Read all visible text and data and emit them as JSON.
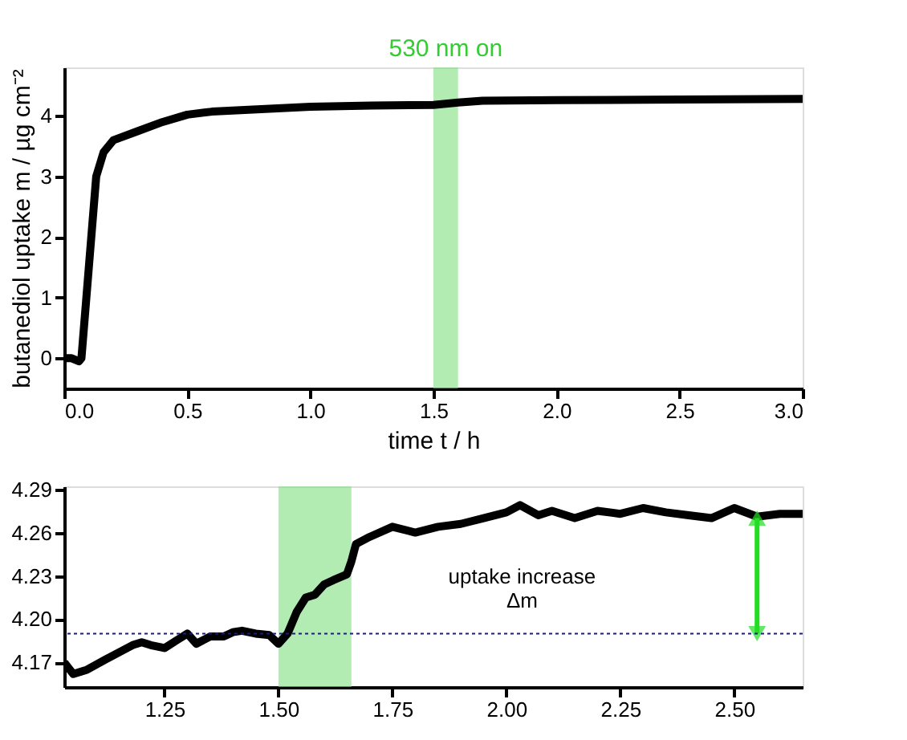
{
  "chart_data": [
    {
      "type": "line",
      "xlabel": "time t / h",
      "ylabel": "butanediol uptake m / µg cm⁻²",
      "xlim": [
        0,
        3
      ],
      "ylim": [
        -0.5,
        4.8
      ],
      "xticks": [
        {
          "value": 0,
          "label": "0.0"
        },
        {
          "value": 0.5,
          "label": "0.5"
        },
        {
          "value": 1,
          "label": "1.0"
        },
        {
          "value": 1.5,
          "label": "1.5"
        },
        {
          "value": 2,
          "label": "2.0"
        },
        {
          "value": 2.5,
          "label": "2.5"
        },
        {
          "value": 3,
          "label": "3.0"
        }
      ],
      "yticks": [
        0,
        1,
        2,
        3,
        4
      ],
      "grid": false,
      "bands": [
        {
          "axis": "x",
          "from": 1.5,
          "to": 1.6,
          "label": "530 nm on",
          "color": "#7ee07e"
        }
      ],
      "series": [
        {
          "color": "#000000",
          "x": [
            0,
            0.03,
            0.06,
            0.07,
            0.09,
            0.11,
            0.13,
            0.16,
            0.2,
            0.3,
            0.4,
            0.5,
            0.6,
            0.75,
            1.0,
            1.25,
            1.5,
            1.6,
            1.7,
            2.0,
            2.5,
            3.0
          ],
          "values": [
            0,
            0,
            -0.05,
            0,
            1.0,
            2.0,
            3.0,
            3.4,
            3.6,
            3.75,
            3.9,
            4.02,
            4.07,
            4.1,
            4.15,
            4.17,
            4.18,
            4.22,
            4.25,
            4.26,
            4.27,
            4.28
          ]
        }
      ]
    },
    {
      "type": "line",
      "xlim": [
        1.03,
        2.65
      ],
      "ylim": [
        4.153,
        4.292
      ],
      "xticks": [
        {
          "value": 1.25,
          "label": "1.25"
        },
        {
          "value": 1.5,
          "label": "1.50"
        },
        {
          "value": 1.75,
          "label": "1.75"
        },
        {
          "value": 2,
          "label": "2.00"
        },
        {
          "value": 2.25,
          "label": "2.25"
        },
        {
          "value": 2.5,
          "label": "2.50"
        }
      ],
      "yticks": [
        4.17,
        {
          "value": 4.2,
          "label": "4.20"
        },
        4.23,
        4.26,
        4.29
      ],
      "grid": false,
      "bands": [
        {
          "axis": "x",
          "from": 1.5,
          "to": 1.66,
          "color": "#7ee07e"
        }
      ],
      "ref_lines": [
        {
          "axis": "y",
          "value": 4.19,
          "color": "#1a1a8c",
          "line_style": "dotted"
        }
      ],
      "annotations": [
        "uptake increase\nΔm"
      ],
      "series": [
        {
          "color": "#000000",
          "x": [
            1.03,
            1.05,
            1.08,
            1.12,
            1.15,
            1.18,
            1.2,
            1.22,
            1.25,
            1.28,
            1.3,
            1.32,
            1.35,
            1.38,
            1.4,
            1.42,
            1.45,
            1.48,
            1.5,
            1.52,
            1.54,
            1.56,
            1.58,
            1.6,
            1.62,
            1.65,
            1.66,
            1.67,
            1.7,
            1.75,
            1.8,
            1.85,
            1.9,
            1.95,
            2.0,
            2.03,
            2.07,
            2.1,
            2.15,
            2.2,
            2.25,
            2.3,
            2.35,
            2.4,
            2.45,
            2.5,
            2.55,
            2.6,
            2.65
          ],
          "values": [
            4.17,
            4.162,
            4.165,
            4.172,
            4.177,
            4.182,
            4.184,
            4.182,
            4.18,
            4.186,
            4.19,
            4.183,
            4.188,
            4.188,
            4.191,
            4.192,
            4.19,
            4.189,
            4.183,
            4.19,
            4.205,
            4.215,
            4.217,
            4.224,
            4.227,
            4.231,
            4.24,
            4.252,
            4.257,
            4.264,
            4.26,
            4.264,
            4.266,
            4.27,
            4.274,
            4.279,
            4.272,
            4.275,
            4.27,
            4.275,
            4.273,
            4.277,
            4.274,
            4.272,
            4.27,
            4.277,
            4.271,
            4.273,
            4.273
          ]
        },
        {
          "type": "line",
          "marker": "triangle",
          "color": "#22dd22",
          "x": [
            2.55,
            2.55
          ],
          "values": [
            4.19,
            4.27
          ]
        }
      ]
    }
  ]
}
